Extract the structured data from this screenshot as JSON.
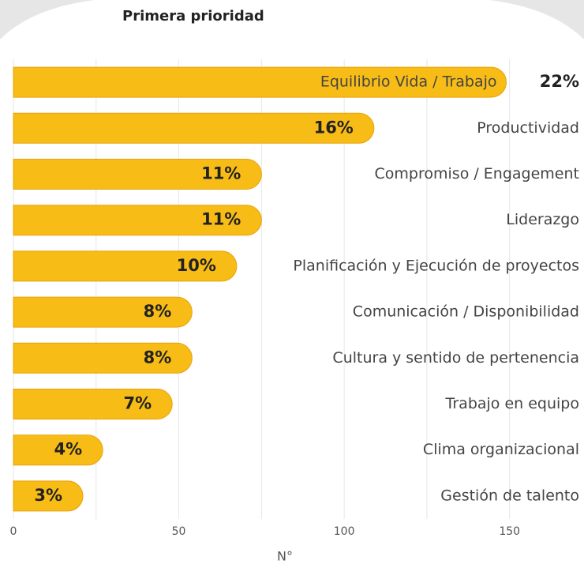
{
  "chart_data": {
    "type": "bar",
    "orientation": "horizontal",
    "title": "Primera prioridad",
    "categories": [
      "Equilibrio Vida / Trabajo",
      "Productividad",
      "Compromiso / Engagement",
      "Liderazgo",
      "Planificación y Ejecución de proyectos",
      "Comunicación / Disponibilidad",
      "Cultura y sentido de pertenencia",
      "Trabajo en equipo",
      "Clima organizacional",
      "Gestión de talento"
    ],
    "values": [
      149,
      109,
      75,
      75,
      67.5,
      54,
      54,
      48,
      27,
      21
    ],
    "percent_labels": [
      "22%",
      "16%",
      "11%",
      "11%",
      "10%",
      "8%",
      "8%",
      "7%",
      "4%",
      "3%"
    ],
    "color": "#f7bc16",
    "xlim": [
      0,
      172.5
    ],
    "xticks": [
      0,
      50,
      100,
      150
    ],
    "minor_xticks": [
      25,
      75,
      125
    ],
    "grid": true,
    "xlabel": "N°"
  }
}
